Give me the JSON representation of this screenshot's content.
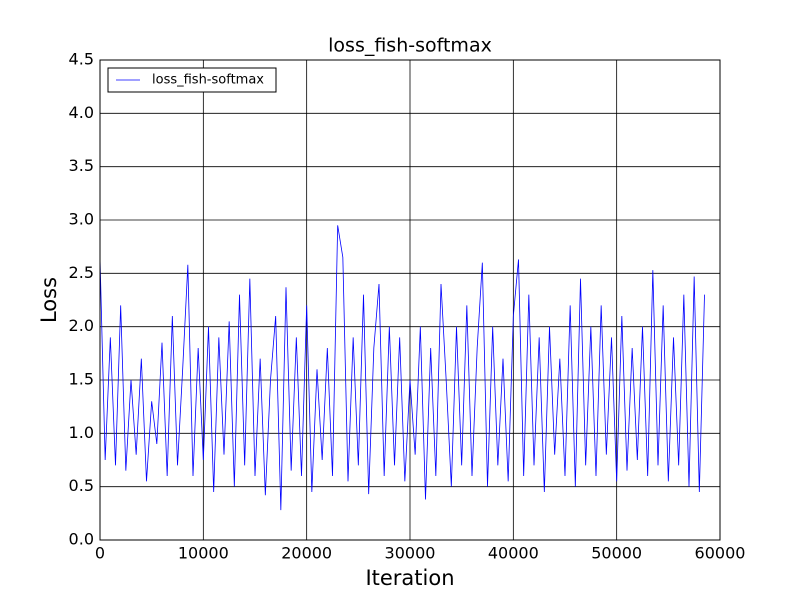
{
  "chart_data": {
    "type": "line",
    "title": "loss_fish-softmax",
    "x_label": "Iteration",
    "y_label": "Loss",
    "x": [
      0,
      500,
      1000,
      1500,
      2000,
      2500,
      3000,
      3500,
      4000,
      4500,
      5000,
      5500,
      6000,
      6500,
      7000,
      7500,
      8000,
      8500,
      9000,
      9500,
      10000,
      10500,
      11000,
      11500,
      12000,
      12500,
      13000,
      13500,
      14000,
      14500,
      15000,
      15500,
      16000,
      16500,
      17000,
      17500,
      18000,
      18500,
      19000,
      19500,
      20000,
      20500,
      21000,
      21500,
      22000,
      22500,
      23000,
      23500,
      24000,
      24500,
      25000,
      25500,
      26000,
      26500,
      27000,
      27500,
      28000,
      28500,
      29000,
      29500,
      30000,
      30500,
      31000,
      31500,
      32000,
      32500,
      33000,
      33500,
      34000,
      34500,
      35000,
      35500,
      36000,
      36500,
      37000,
      37500,
      38000,
      38500,
      39000,
      39500,
      40000,
      40500,
      41000,
      41500,
      42000,
      42500,
      43000,
      43500,
      44000,
      44500,
      45000,
      45500,
      46000,
      46500,
      47000,
      47500,
      48000,
      48500,
      49000,
      49500,
      50000,
      50500,
      51000,
      51500,
      52000,
      52500,
      53000,
      53500,
      54000,
      54500,
      55000,
      55500,
      56000,
      56500,
      57000,
      57500,
      58000,
      58500
    ],
    "series": [
      {
        "name": "loss_fish-softmax",
        "color": "#0000ff",
        "values": [
          2.65,
          0.75,
          1.9,
          0.7,
          2.2,
          0.65,
          1.5,
          0.8,
          1.7,
          0.55,
          1.3,
          0.9,
          1.85,
          0.6,
          2.1,
          0.7,
          1.6,
          2.58,
          0.6,
          1.8,
          0.75,
          2.0,
          0.45,
          1.9,
          0.8,
          2.05,
          0.5,
          2.3,
          0.7,
          2.45,
          0.6,
          1.7,
          0.42,
          1.5,
          2.1,
          0.28,
          2.37,
          0.65,
          1.9,
          0.6,
          2.2,
          0.45,
          1.6,
          0.75,
          1.8,
          0.6,
          2.95,
          2.65,
          0.55,
          1.9,
          0.7,
          2.3,
          0.43,
          1.8,
          2.4,
          0.6,
          2.0,
          0.7,
          1.9,
          0.55,
          1.5,
          0.8,
          2.0,
          0.38,
          1.8,
          0.6,
          2.4,
          1.5,
          0.5,
          2.0,
          0.7,
          2.2,
          0.6,
          1.8,
          2.6,
          0.5,
          2.0,
          0.7,
          1.7,
          0.55,
          2.1,
          2.63,
          0.6,
          2.3,
          0.7,
          1.9,
          0.45,
          2.0,
          0.8,
          1.7,
          0.6,
          2.2,
          0.5,
          2.45,
          0.7,
          2.0,
          0.6,
          2.2,
          0.8,
          1.9,
          0.55,
          2.1,
          0.65,
          1.8,
          0.75,
          2.0,
          0.6,
          2.53,
          0.7,
          2.2,
          0.55,
          1.9,
          0.7,
          2.3,
          0.5,
          2.47,
          0.45,
          2.3
        ]
      }
    ],
    "xlim": [
      0,
      60000
    ],
    "xticks": [
      0,
      10000,
      20000,
      30000,
      40000,
      50000,
      60000
    ],
    "ylim": [
      0,
      4.5
    ],
    "yticks": [
      {
        "value": 0,
        "label": "0.0"
      },
      0.5,
      {
        "value": 1,
        "label": "1.0"
      },
      1.5,
      {
        "value": 2,
        "label": "2.0"
      },
      2.5,
      {
        "value": 3,
        "label": "3.0"
      },
      3.5,
      {
        "value": 4,
        "label": "4.0"
      },
      4.5
    ],
    "grid": true,
    "legend": "upper left"
  }
}
